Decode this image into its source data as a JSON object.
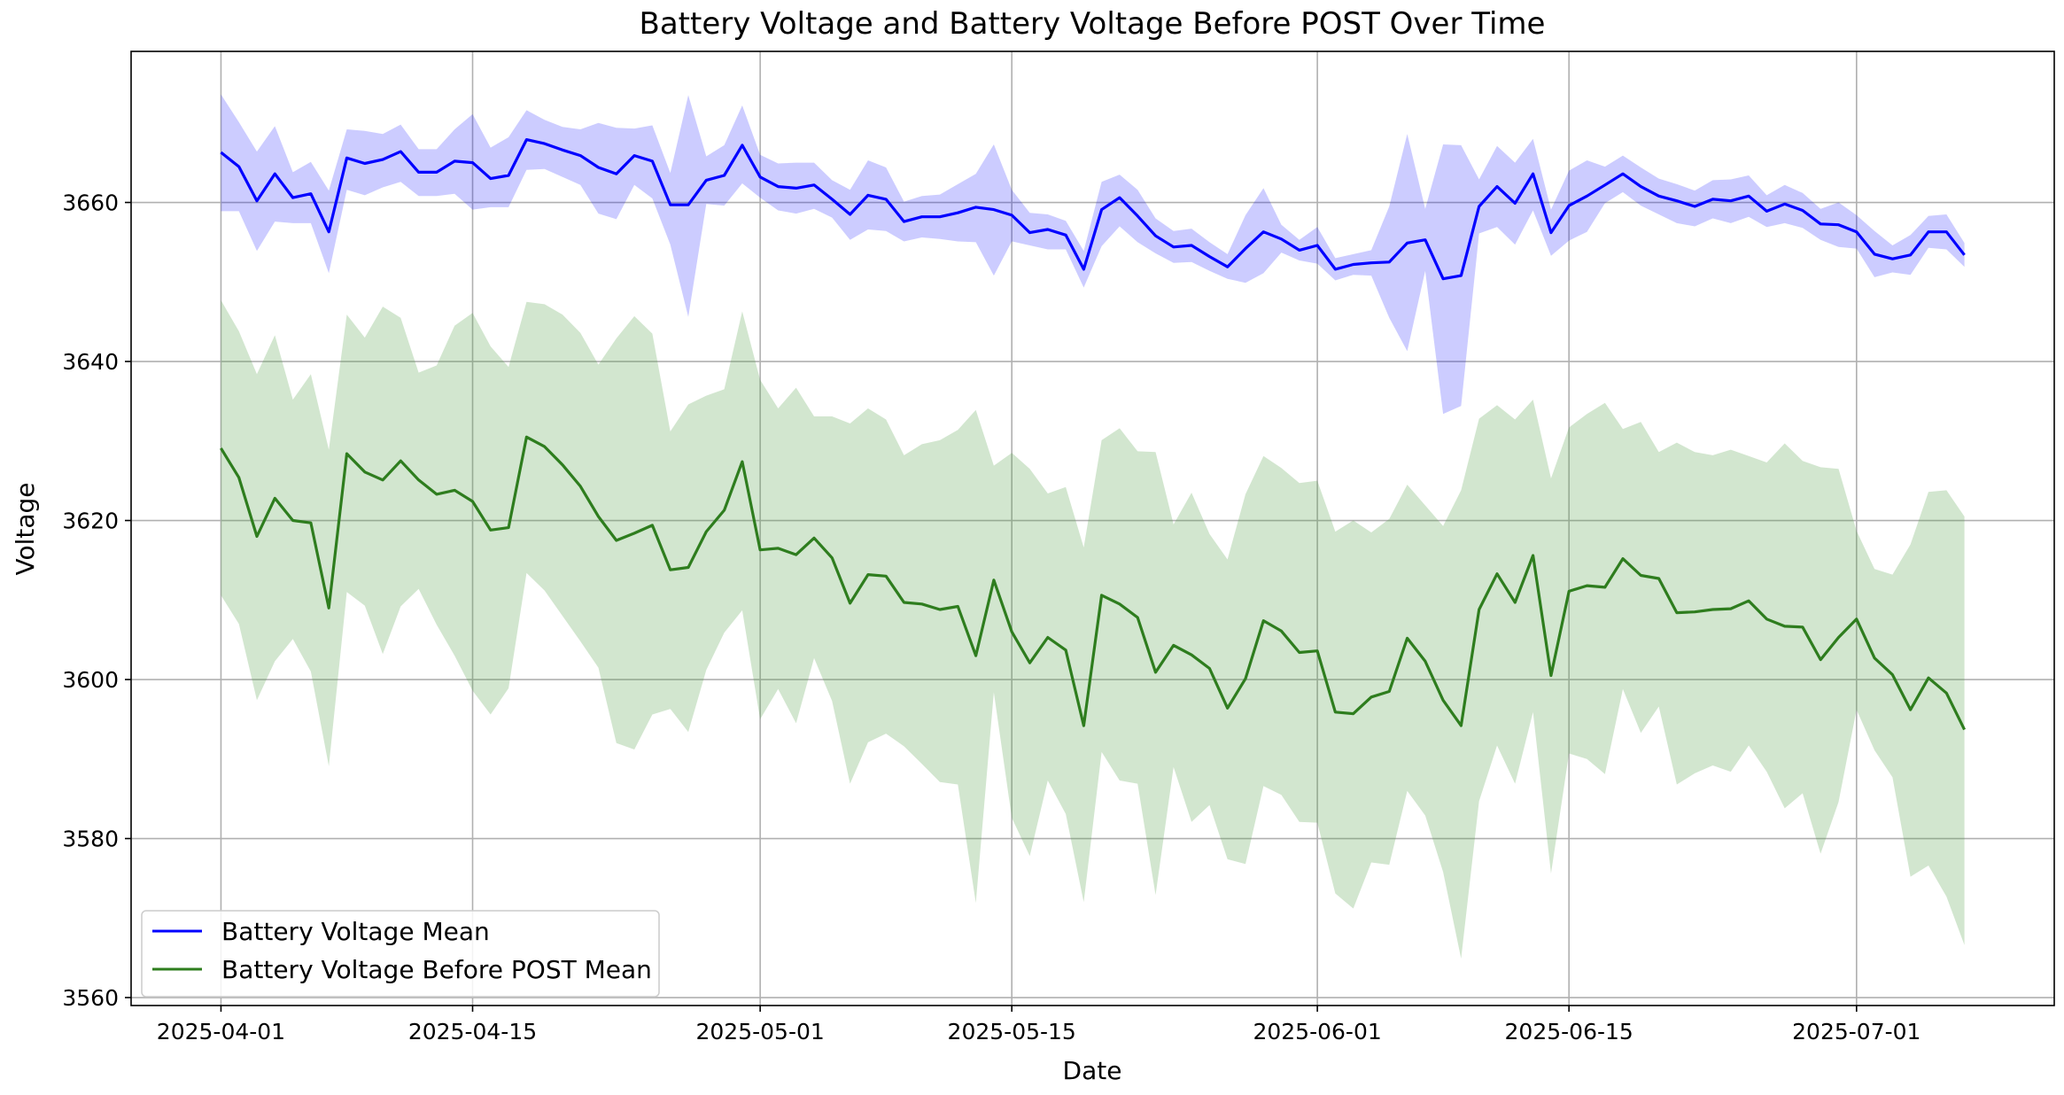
{
  "chart_data": {
    "type": "line",
    "title": "Battery Voltage and Battery Voltage Before POST Over Time",
    "xlabel": "Date",
    "ylabel": "Voltage",
    "x_start": "2025-04-01",
    "x_end": "2025-07-07",
    "xlim": [
      "2025-03-27",
      "2025-07-12"
    ],
    "ylim": [
      3559,
      3679
    ],
    "x_ticks": [
      "2025-04-01",
      "2025-04-15",
      "2025-05-01",
      "2025-05-15",
      "2025-06-01",
      "2025-06-15",
      "2025-07-01"
    ],
    "y_ticks": [
      3560,
      3580,
      3600,
      3620,
      3640,
      3660
    ],
    "grid": true,
    "legend_position": "lower-left",
    "series": [
      {
        "name": "Battery Voltage Mean",
        "color": "#0000ff",
        "band_color": "#0000ff",
        "band_opacity": 0.2,
        "values": [
          3666.3,
          3664.5,
          3660.2,
          3663.6,
          3660.6,
          3661.1,
          3656.3,
          3665.6,
          3664.9,
          3665.4,
          3666.4,
          3663.8,
          3663.8,
          3665.2,
          3665.0,
          3663.0,
          3663.4,
          3667.9,
          3667.4,
          3666.6,
          3665.9,
          3664.4,
          3663.6,
          3665.9,
          3665.2,
          3659.7,
          3659.7,
          3662.8,
          3663.4,
          3667.2,
          3663.2,
          3662.0,
          3661.8,
          3662.2,
          3660.4,
          3658.5,
          3660.9,
          3660.4,
          3657.6,
          3658.2,
          3658.2,
          3658.7,
          3659.4,
          3659.1,
          3658.4,
          3656.2,
          3656.6,
          3655.9,
          3651.6,
          3659.1,
          3660.6,
          3658.3,
          3655.8,
          3654.4,
          3654.6,
          3653.2,
          3651.9,
          3654.2,
          3656.3,
          3655.4,
          3654.0,
          3654.6,
          3651.6,
          3652.2,
          3652.4,
          3652.5,
          3654.9,
          3655.3,
          3650.4,
          3650.8,
          3659.5,
          3662.0,
          3659.9,
          3663.6,
          3656.2,
          3659.6,
          3660.8,
          3662.2,
          3663.6,
          3662.0,
          3660.8,
          3660.2,
          3659.5,
          3660.4,
          3660.2,
          3660.8,
          3658.9,
          3659.8,
          3659.0,
          3657.3,
          3657.2,
          3656.3,
          3653.5,
          3652.9,
          3653.4,
          3656.3,
          3656.3,
          3653.4
        ],
        "lower": [
          3658.9,
          3658.9,
          3653.9,
          3657.6,
          3657.4,
          3657.4,
          3651.1,
          3661.6,
          3660.9,
          3661.9,
          3662.6,
          3660.8,
          3660.8,
          3661.1,
          3659.1,
          3659.4,
          3659.4,
          3664.1,
          3664.2,
          3663.2,
          3662.2,
          3658.6,
          3657.9,
          3662.2,
          3660.5,
          3654.7,
          3645.6,
          3659.8,
          3659.6,
          3662.4,
          3660.6,
          3659.0,
          3658.6,
          3659.2,
          3658.1,
          3655.3,
          3656.6,
          3656.4,
          3655.1,
          3655.6,
          3655.4,
          3655.1,
          3655.0,
          3650.8,
          3655.1,
          3654.6,
          3654.1,
          3654.1,
          3649.3,
          3654.5,
          3657.0,
          3655.0,
          3653.6,
          3652.4,
          3652.5,
          3651.4,
          3650.4,
          3649.9,
          3651.1,
          3653.7,
          3652.7,
          3652.3,
          3650.2,
          3650.9,
          3650.8,
          3645.5,
          3641.3,
          3651.4,
          3633.4,
          3634.4,
          3656.1,
          3656.9,
          3654.7,
          3659.0,
          3653.3,
          3655.2,
          3656.3,
          3659.9,
          3661.3,
          3659.6,
          3658.5,
          3657.4,
          3657.0,
          3658.0,
          3657.4,
          3658.2,
          3656.9,
          3657.4,
          3656.8,
          3655.3,
          3654.4,
          3654.2,
          3650.6,
          3651.2,
          3650.9,
          3654.3,
          3654.1,
          3651.9
        ],
        "upper": [
          3673.6,
          3670.1,
          3666.4,
          3669.6,
          3663.8,
          3665.1,
          3661.5,
          3669.2,
          3669.0,
          3668.6,
          3669.8,
          3666.7,
          3666.7,
          3669.2,
          3671.1,
          3666.9,
          3668.2,
          3671.6,
          3670.4,
          3669.5,
          3669.2,
          3670.0,
          3669.4,
          3669.3,
          3669.7,
          3663.7,
          3673.5,
          3665.8,
          3667.2,
          3672.2,
          3666.0,
          3664.9,
          3665.0,
          3665.0,
          3662.8,
          3661.6,
          3665.3,
          3664.4,
          3660.1,
          3660.8,
          3661.0,
          3662.3,
          3663.6,
          3667.3,
          3661.6,
          3658.7,
          3658.5,
          3657.7,
          3653.9,
          3662.6,
          3663.5,
          3661.6,
          3658.0,
          3656.4,
          3656.7,
          3655.0,
          3653.5,
          3658.4,
          3661.8,
          3657.2,
          3655.3,
          3656.9,
          3653.0,
          3653.5,
          3654.0,
          3659.5,
          3668.6,
          3659.2,
          3667.3,
          3667.2,
          3662.9,
          3667.1,
          3665.0,
          3668.0,
          3659.1,
          3664.0,
          3665.3,
          3664.5,
          3665.9,
          3664.4,
          3663.0,
          3662.3,
          3661.5,
          3662.8,
          3662.9,
          3663.4,
          3660.9,
          3662.2,
          3661.2,
          3659.2,
          3660.0,
          3658.4,
          3656.4,
          3654.6,
          3655.9,
          3658.3,
          3658.5,
          3654.9
        ]
      },
      {
        "name": "Battery Voltage Before POST Mean",
        "color": "#2e7d1e",
        "band_color": "#4a9a3f",
        "band_opacity": 0.25,
        "values": [
          3629.1,
          3625.4,
          3618.0,
          3622.8,
          3620.0,
          3619.7,
          3609.0,
          3628.4,
          3626.1,
          3625.1,
          3627.5,
          3625.1,
          3623.3,
          3623.8,
          3622.4,
          3618.8,
          3619.1,
          3630.5,
          3629.3,
          3627.0,
          3624.3,
          3620.5,
          3617.5,
          3618.4,
          3619.4,
          3613.8,
          3614.1,
          3618.6,
          3621.3,
          3627.4,
          3616.3,
          3616.5,
          3615.7,
          3617.8,
          3615.3,
          3609.6,
          3613.2,
          3613.0,
          3609.7,
          3609.5,
          3608.8,
          3609.2,
          3603.0,
          3612.5,
          3606.0,
          3602.1,
          3605.3,
          3603.7,
          3594.2,
          3610.6,
          3609.5,
          3607.8,
          3600.9,
          3604.3,
          3603.1,
          3601.4,
          3596.4,
          3600.1,
          3607.4,
          3606.1,
          3603.4,
          3603.6,
          3595.9,
          3595.7,
          3597.8,
          3598.5,
          3605.2,
          3602.3,
          3597.4,
          3594.2,
          3608.8,
          3613.3,
          3609.7,
          3615.6,
          3600.5,
          3611.1,
          3611.8,
          3611.6,
          3615.2,
          3613.1,
          3612.7,
          3608.4,
          3608.5,
          3608.8,
          3608.9,
          3609.9,
          3607.6,
          3606.7,
          3606.6,
          3602.5,
          3605.3,
          3607.6,
          3602.7,
          3600.6,
          3596.2,
          3600.2,
          3598.3,
          3593.7
        ],
        "lower": [
          3610.6,
          3607.0,
          3597.4,
          3602.3,
          3605.1,
          3601.0,
          3589.1,
          3611.0,
          3609.3,
          3603.2,
          3609.2,
          3611.4,
          3606.9,
          3603.0,
          3598.6,
          3595.6,
          3598.9,
          3613.4,
          3611.2,
          3608.0,
          3604.8,
          3601.5,
          3592.0,
          3591.2,
          3595.6,
          3596.3,
          3593.4,
          3601.2,
          3605.9,
          3608.7,
          3595.0,
          3598.8,
          3594.5,
          3602.7,
          3597.3,
          3586.9,
          3592.1,
          3593.2,
          3591.6,
          3589.4,
          3587.1,
          3586.8,
          3571.9,
          3598.4,
          3582.6,
          3577.8,
          3587.3,
          3583.1,
          3572.0,
          3590.9,
          3587.3,
          3586.9,
          3572.9,
          3589.0,
          3582.1,
          3584.2,
          3577.4,
          3576.8,
          3586.6,
          3585.5,
          3582.1,
          3582.0,
          3573.1,
          3571.2,
          3577.0,
          3576.7,
          3586.0,
          3582.9,
          3575.8,
          3564.9,
          3584.7,
          3591.7,
          3586.9,
          3595.9,
          3575.6,
          3590.7,
          3590.0,
          3588.1,
          3598.8,
          3593.3,
          3596.6,
          3586.8,
          3588.2,
          3589.2,
          3588.4,
          3591.7,
          3588.4,
          3583.8,
          3585.7,
          3578.1,
          3584.6,
          3596.2,
          3591.1,
          3587.7,
          3575.2,
          3576.6,
          3572.7,
          3566.6
        ],
        "upper": [
          3647.7,
          3643.8,
          3638.4,
          3643.3,
          3635.2,
          3638.4,
          3628.9,
          3645.9,
          3643.0,
          3646.9,
          3645.5,
          3638.6,
          3639.5,
          3644.5,
          3646.1,
          3641.9,
          3639.3,
          3647.5,
          3647.2,
          3645.9,
          3643.6,
          3639.6,
          3642.9,
          3645.7,
          3643.5,
          3631.2,
          3634.6,
          3635.7,
          3636.5,
          3646.3,
          3637.7,
          3634.1,
          3636.7,
          3633.1,
          3633.1,
          3632.2,
          3634.1,
          3632.7,
          3628.2,
          3629.6,
          3630.1,
          3631.4,
          3633.9,
          3626.9,
          3628.5,
          3626.5,
          3623.4,
          3624.2,
          3616.6,
          3630.1,
          3631.6,
          3628.7,
          3628.6,
          3619.5,
          3623.5,
          3618.3,
          3615.1,
          3623.3,
          3628.1,
          3626.6,
          3624.7,
          3625.0,
          3618.6,
          3620.0,
          3618.5,
          3620.2,
          3624.5,
          3621.9,
          3619.3,
          3623.8,
          3632.8,
          3634.5,
          3632.7,
          3635.2,
          3625.3,
          3631.7,
          3633.4,
          3634.8,
          3631.5,
          3632.4,
          3628.6,
          3629.8,
          3628.6,
          3628.2,
          3628.9,
          3628.1,
          3627.3,
          3629.7,
          3627.5,
          3626.7,
          3626.5,
          3618.7,
          3613.9,
          3613.2,
          3617.0,
          3623.6,
          3623.8,
          3620.5
        ]
      }
    ]
  }
}
